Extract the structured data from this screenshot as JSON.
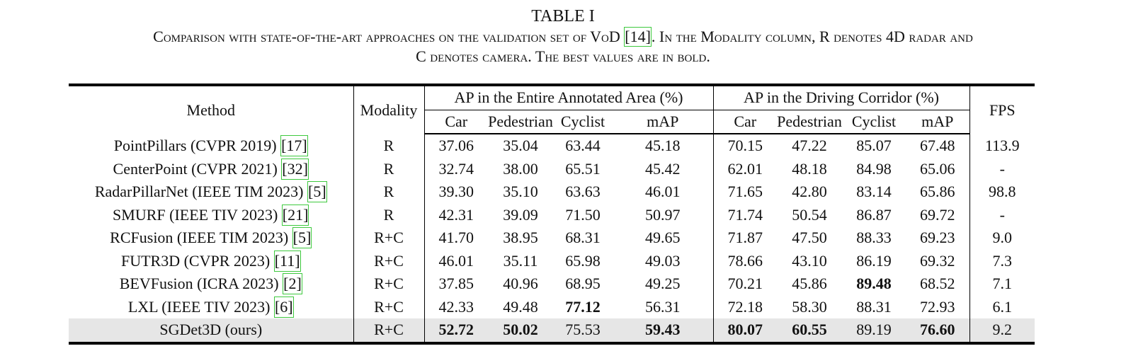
{
  "caption": {
    "label": "TABLE I",
    "line1_a": "Comparison with state-of-the-art approaches on the validation set of VoD ",
    "line1_ref": "[14]",
    "line1_b": ". In the Modality column, R denotes 4D radar and",
    "line2": "C denotes camera. The best values are in bold."
  },
  "headers": {
    "method": "Method",
    "modality": "Modality",
    "group1": "AP in the Entire Annotated Area (%)",
    "group2": "AP in the Driving Corridor (%)",
    "fps": "FPS",
    "sub": [
      "Car",
      "Pedestrian",
      "Cyclist",
      "mAP"
    ]
  },
  "rows": [
    {
      "name": "PointPillars (CVPR 2019) ",
      "ref": "[17]",
      "modality": "R",
      "vals": [
        "37.06",
        "35.04",
        "63.44",
        "45.18",
        "70.15",
        "47.22",
        "85.07",
        "67.48",
        "113.9"
      ],
      "bold": []
    },
    {
      "name": "CenterPoint (CVPR 2021) ",
      "ref": "[32]",
      "modality": "R",
      "vals": [
        "32.74",
        "38.00",
        "65.51",
        "45.42",
        "62.01",
        "48.18",
        "84.98",
        "65.06",
        "-"
      ],
      "bold": []
    },
    {
      "name": "RadarPillarNet (IEEE TIM 2023) ",
      "ref": "[5]",
      "modality": "R",
      "vals": [
        "39.30",
        "35.10",
        "63.63",
        "46.01",
        "71.65",
        "42.80",
        "83.14",
        "65.86",
        "98.8"
      ],
      "bold": []
    },
    {
      "name": "SMURF (IEEE TIV 2023) ",
      "ref": "[21]",
      "modality": "R",
      "vals": [
        "42.31",
        "39.09",
        "71.50",
        "50.97",
        "71.74",
        "50.54",
        "86.87",
        "69.72",
        "-"
      ],
      "bold": []
    },
    {
      "name": "RCFusion (IEEE TIM 2023) ",
      "ref": "[5]",
      "modality": "R+C",
      "vals": [
        "41.70",
        "38.95",
        "68.31",
        "49.65",
        "71.87",
        "47.50",
        "88.33",
        "69.23",
        "9.0"
      ],
      "bold": []
    },
    {
      "name": "FUTR3D (CVPR 2023) ",
      "ref": "[11]",
      "modality": "R+C",
      "vals": [
        "46.01",
        "35.11",
        "65.98",
        "49.03",
        "78.66",
        "43.10",
        "86.19",
        "69.32",
        "7.3"
      ],
      "bold": []
    },
    {
      "name": "BEVFusion (ICRA 2023) ",
      "ref": "[2]",
      "modality": "R+C",
      "vals": [
        "37.85",
        "40.96",
        "68.95",
        "49.25",
        "70.21",
        "45.86",
        "89.48",
        "68.52",
        "7.1"
      ],
      "bold": [
        6
      ]
    },
    {
      "name": "LXL (IEEE TIV 2023) ",
      "ref": "[6]",
      "modality": "R+C",
      "vals": [
        "42.33",
        "49.48",
        "77.12",
        "56.31",
        "72.18",
        "58.30",
        "88.31",
        "72.93",
        "6.1"
      ],
      "bold": [
        2
      ]
    },
    {
      "name": "SGDet3D (ours)",
      "ref": "",
      "modality": "R+C",
      "vals": [
        "52.72",
        "50.02",
        "75.53",
        "59.43",
        "80.07",
        "60.55",
        "89.19",
        "76.60",
        "9.2"
      ],
      "bold": [
        0,
        1,
        3,
        4,
        5,
        7
      ]
    }
  ]
}
